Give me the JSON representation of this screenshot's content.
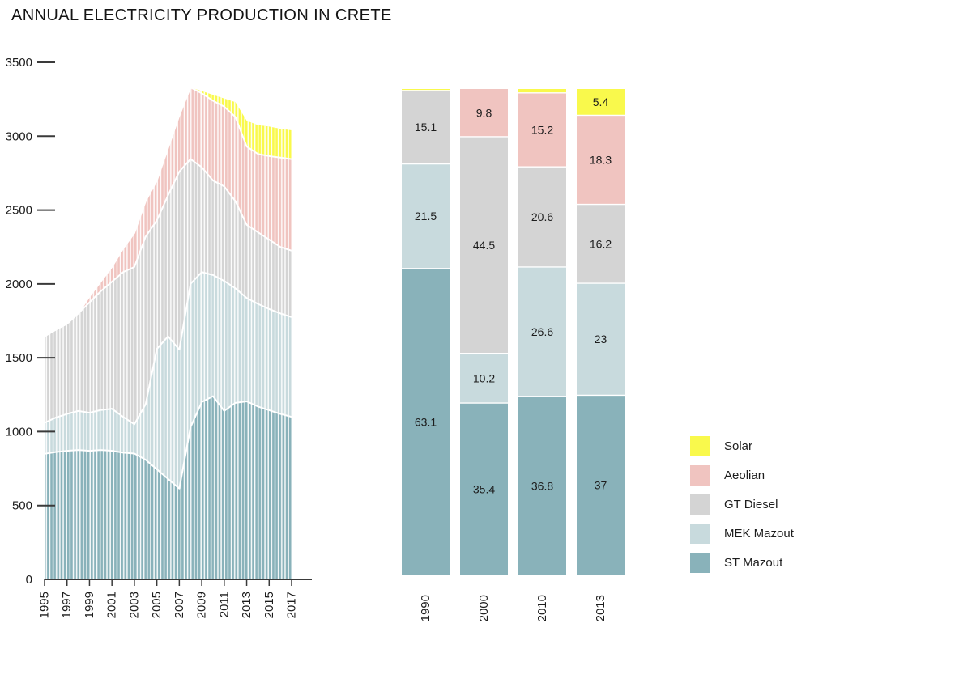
{
  "title": "ANNUAL ELECTRICITY PRODUCTION IN CRETE",
  "colors": {
    "solar": "#f9f94c",
    "aeolian": "#f0c4c0",
    "gt_diesel": "#d4d4d4",
    "mek_mazout": "#c8dadd",
    "st_mazout": "#89b2ba",
    "axis": "#3a3a3a",
    "text": "#1d1d1d",
    "separator": "#ffffff"
  },
  "legend": {
    "items": [
      {
        "label": "Solar",
        "color_key": "solar"
      },
      {
        "label": "Aeolian",
        "color_key": "aeolian"
      },
      {
        "label": "GT Diesel",
        "color_key": "gt_diesel"
      },
      {
        "label": "MEK Mazout",
        "color_key": "mek_mazout"
      },
      {
        "label": "ST Mazout",
        "color_key": "st_mazout"
      }
    ]
  },
  "chart_data": [
    {
      "id": "annual-production-area",
      "type": "area",
      "stacked": true,
      "pattern": "vertical-white-stripes",
      "grid": false,
      "ylim": [
        0,
        3500
      ],
      "yticks": [
        3500,
        3000,
        2500,
        2000,
        1500,
        1000,
        500,
        0
      ],
      "x": [
        1995,
        1996,
        1997,
        1998,
        1999,
        2000,
        2001,
        2002,
        2003,
        2004,
        2005,
        2006,
        2007,
        2008,
        2009,
        2010,
        2011,
        2012,
        2013,
        2014,
        2015,
        2016,
        2017
      ],
      "xtick_labels": [
        "1995",
        "1997",
        "1999",
        "2001",
        "2003",
        "2005",
        "2007",
        "2009",
        "2011",
        "2013",
        "2015",
        "2017"
      ],
      "series": [
        {
          "name": "ST Mazout",
          "color_key": "st_mazout",
          "values": [
            850,
            862,
            870,
            876,
            870,
            876,
            870,
            858,
            852,
            810,
            745,
            680,
            615,
            1030,
            1200,
            1240,
            1140,
            1195,
            1205,
            1170,
            1145,
            1120,
            1100
          ]
        },
        {
          "name": "MEK Mazout",
          "color_key": "mek_mazout",
          "values": [
            210,
            233,
            250,
            264,
            258,
            270,
            285,
            242,
            198,
            375,
            815,
            965,
            940,
            970,
            880,
            820,
            880,
            775,
            700,
            695,
            685,
            680,
            675
          ]
        },
        {
          "name": "GT Diesel",
          "color_key": "gt_diesel",
          "values": [
            585,
            595,
            610,
            660,
            747,
            804,
            860,
            980,
            1065,
            1135,
            870,
            955,
            1205,
            845,
            710,
            640,
            640,
            590,
            495,
            485,
            470,
            450,
            450
          ]
        },
        {
          "name": "Aeolian",
          "color_key": "aeolian",
          "values": [
            0,
            0,
            0,
            0,
            40,
            65,
            100,
            160,
            230,
            240,
            270,
            320,
            380,
            485,
            500,
            540,
            540,
            570,
            530,
            530,
            565,
            605,
            620
          ]
        },
        {
          "name": "Solar",
          "color_key": "solar",
          "values": [
            0,
            0,
            0,
            0,
            0,
            0,
            0,
            0,
            0,
            0,
            0,
            0,
            0,
            0,
            15,
            40,
            55,
            100,
            175,
            195,
            200,
            195,
            195
          ]
        }
      ]
    },
    {
      "id": "share-by-source-bars",
      "type": "bar",
      "stacked": true,
      "unit": "percent",
      "categories": [
        "1990",
        "2000",
        "2010",
        "2013"
      ],
      "label_min_value": 2,
      "series": [
        {
          "name": "ST Mazout",
          "color_key": "st_mazout",
          "values": [
            63.1,
            35.4,
            36.8,
            37
          ]
        },
        {
          "name": "MEK Mazout",
          "color_key": "mek_mazout",
          "values": [
            21.5,
            10.2,
            26.6,
            23
          ]
        },
        {
          "name": "GT Diesel",
          "color_key": "gt_diesel",
          "values": [
            15.1,
            44.5,
            20.6,
            16.2
          ]
        },
        {
          "name": "Aeolian",
          "color_key": "aeolian",
          "values": [
            0,
            9.8,
            15.2,
            18.3
          ]
        },
        {
          "name": "Solar",
          "color_key": "solar",
          "values": [
            0.3,
            0,
            0.8,
            5.4
          ]
        }
      ]
    }
  ]
}
